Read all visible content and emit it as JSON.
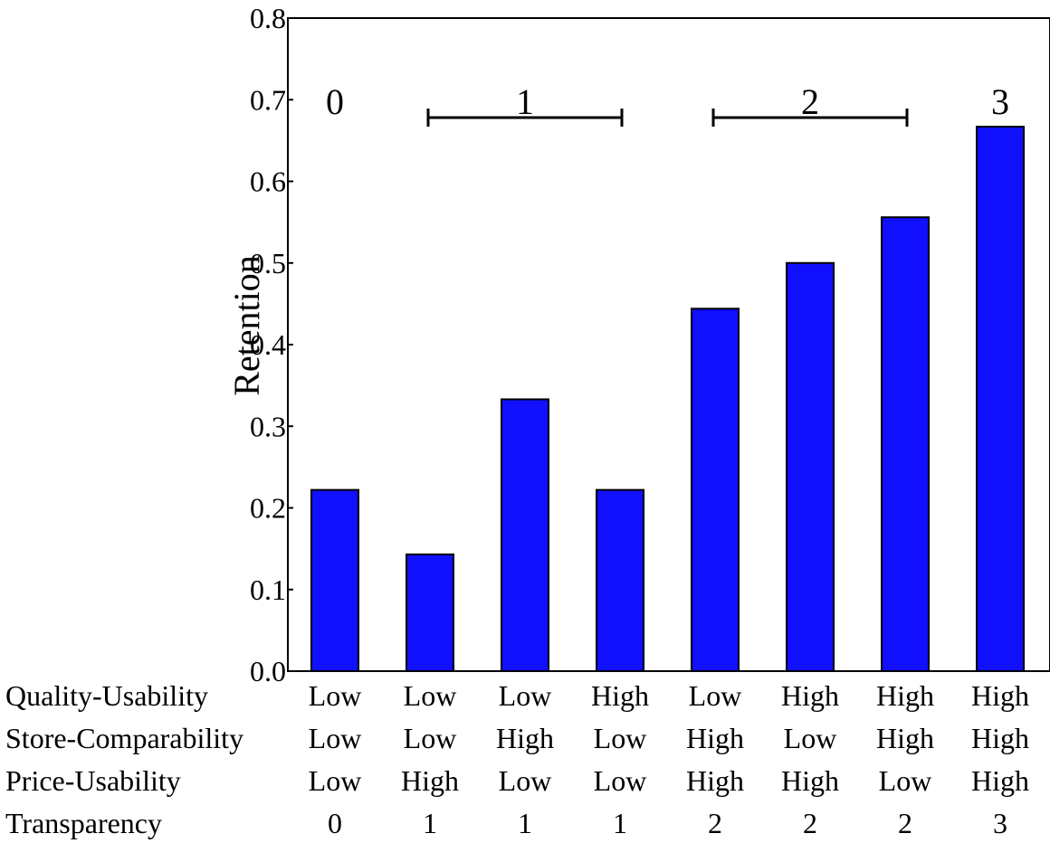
{
  "chart_data": {
    "type": "bar",
    "ylabel": "Retention",
    "ylim": [
      0,
      0.8
    ],
    "yticks": [
      "0.0",
      "0.1",
      "0.2",
      "0.3",
      "0.4",
      "0.5",
      "0.6",
      "0.7",
      "0.8"
    ],
    "values": [
      0.222,
      0.143,
      0.333,
      0.222,
      0.444,
      0.5,
      0.556,
      0.667
    ],
    "bar_color": "#1010FF",
    "factor_rows": [
      {
        "label": "Quality-Usability",
        "values": [
          "Low",
          "Low",
          "Low",
          "High",
          "Low",
          "High",
          "High",
          "High"
        ]
      },
      {
        "label": "Store-Comparability",
        "values": [
          "Low",
          "Low",
          "High",
          "Low",
          "High",
          "Low",
          "High",
          "High"
        ]
      },
      {
        "label": "Price-Usability",
        "values": [
          "Low",
          "High",
          "Low",
          "Low",
          "High",
          "High",
          "Low",
          "High"
        ]
      },
      {
        "label": "Transparency",
        "values": [
          "0",
          "1",
          "1",
          "1",
          "2",
          "2",
          "2",
          "3"
        ]
      }
    ],
    "group_annotations": [
      {
        "label": "0",
        "start": 0,
        "end": 0,
        "bracket": false
      },
      {
        "label": "1",
        "start": 1,
        "end": 3,
        "bracket": true
      },
      {
        "label": "2",
        "start": 4,
        "end": 6,
        "bracket": true
      },
      {
        "label": "3",
        "start": 7,
        "end": 7,
        "bracket": false
      }
    ]
  }
}
